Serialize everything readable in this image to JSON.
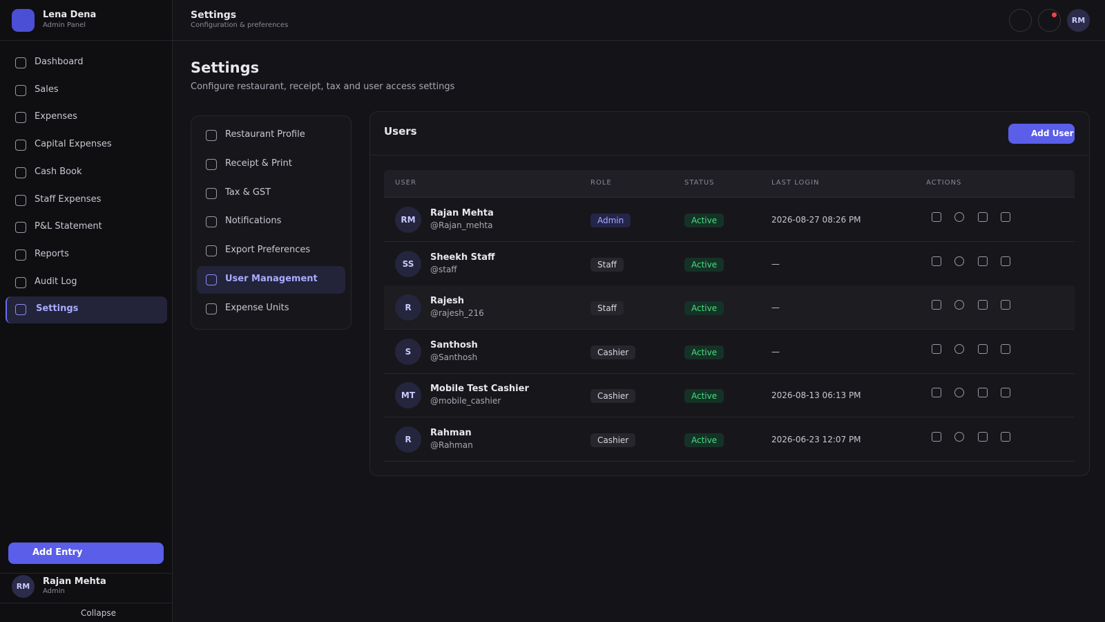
{
  "brand": {
    "name": "Lena Dena",
    "subtitle": "Admin Panel"
  },
  "nav": [
    "Dashboard",
    "Sales",
    "Expenses",
    "Capital Expenses",
    "Cash Book",
    "Staff Expenses",
    "P&L Statement",
    "Reports",
    "Audit Log",
    "Settings"
  ],
  "add_entry": "Add Entry",
  "sidebar_user": {
    "initials": "RM",
    "name": "Rajan Mehta",
    "role": "Admin"
  },
  "collapse": "Collapse",
  "topbar": {
    "title": "Settings",
    "subtitle": "Configuration & preferences",
    "avatar": "RM"
  },
  "page": {
    "title": "Settings",
    "subtitle": "Configure restaurant, receipt, tax and user access settings"
  },
  "settings_menu": [
    "Restaurant Profile",
    "Receipt & Print",
    "Tax & GST",
    "Notifications",
    "Export Preferences",
    "User Management",
    "Expense Units"
  ],
  "users_panel": {
    "title": "Users",
    "add_button": "Add User",
    "columns": [
      "USER",
      "ROLE",
      "STATUS",
      "LAST LOGIN",
      "ACTIONS"
    ],
    "rows": [
      {
        "initials": "RM",
        "name": "Rajan Mehta",
        "handle": "@Rajan_mehta",
        "role": "Admin",
        "status": "Active",
        "last_login": "2026-08-27 08:26 PM"
      },
      {
        "initials": "SS",
        "name": "Sheekh Staff",
        "handle": "@staff",
        "role": "Staff",
        "status": "Active",
        "last_login": "—"
      },
      {
        "initials": "R",
        "name": "Rajesh",
        "handle": "@rajesh_216",
        "role": "Staff",
        "status": "Active",
        "last_login": "—"
      },
      {
        "initials": "S",
        "name": "Santhosh",
        "handle": "@Santhosh",
        "role": "Cashier",
        "status": "Active",
        "last_login": "—"
      },
      {
        "initials": "MT",
        "name": "Mobile Test Cashier",
        "handle": "@mobile_cashier",
        "role": "Cashier",
        "status": "Active",
        "last_login": "2026-08-13 06:13 PM"
      },
      {
        "initials": "R",
        "name": "Rahman",
        "handle": "@Rahman",
        "role": "Cashier",
        "status": "Active",
        "last_login": "2026-06-23 12:07 PM"
      }
    ]
  }
}
